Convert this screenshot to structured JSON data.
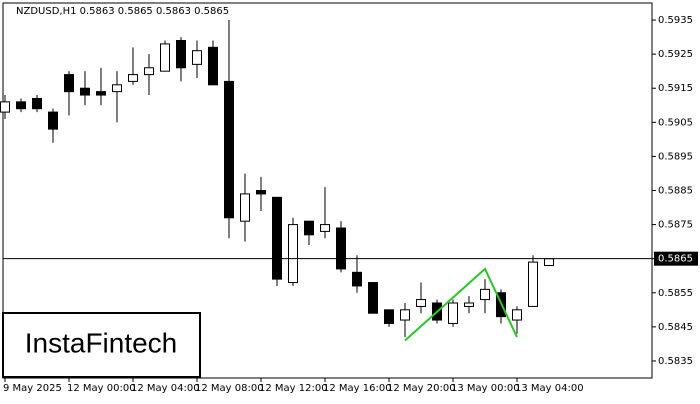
{
  "chart_data": {
    "type": "candlestick",
    "title": "NZDUSD,H1  0.5863 0.5865 0.5863 0.5865",
    "categories": [
      "9 May 2025",
      null,
      null,
      null,
      "12 May 00:00",
      null,
      null,
      null,
      "12 May 04:00",
      null,
      null,
      null,
      "12 May 08:00",
      null,
      null,
      null,
      "12 May 12:00",
      null,
      null,
      null,
      "12 May 16:00",
      null,
      null,
      null,
      "12 May 20:00",
      null,
      null,
      null,
      "13 May 00:00",
      null,
      null,
      null,
      "13 May 04:00",
      null,
      null
    ],
    "open": [
      0.5908,
      0.5911,
      0.5912,
      0.5908,
      0.5919,
      0.5915,
      0.5914,
      0.5914,
      0.5917,
      0.5919,
      0.592,
      0.5929,
      0.5922,
      0.5927,
      0.5917,
      0.5876,
      0.5885,
      0.5883,
      0.5858,
      0.5876,
      0.5873,
      0.5874,
      0.5861,
      0.5858,
      0.585,
      0.5847,
      0.5851,
      0.5852,
      0.5846,
      0.5851,
      0.5853,
      0.5855,
      0.5847,
      0.5851,
      0.5863
    ],
    "high": [
      0.5913,
      0.5912,
      0.5913,
      0.5909,
      0.592,
      0.592,
      0.5921,
      0.592,
      0.5927,
      0.5925,
      0.5929,
      0.593,
      0.5929,
      0.5929,
      0.5935,
      0.589,
      0.5889,
      0.5883,
      0.5877,
      0.5876,
      0.5886,
      0.5876,
      0.5866,
      0.5858,
      0.585,
      0.5852,
      0.5858,
      0.5853,
      0.5853,
      0.5854,
      0.5859,
      0.5856,
      0.5851,
      0.5866,
      0.5865
    ],
    "low": [
      0.5906,
      0.5908,
      0.5908,
      0.5899,
      0.5907,
      0.591,
      0.591,
      0.5905,
      0.5916,
      0.5913,
      0.592,
      0.5917,
      0.5918,
      0.5916,
      0.5871,
      0.587,
      0.5879,
      0.5857,
      0.5857,
      0.5869,
      0.5871,
      0.5861,
      0.5855,
      0.5849,
      0.5845,
      0.5842,
      0.5849,
      0.5846,
      0.5845,
      0.5849,
      0.5849,
      0.5846,
      0.5843,
      0.5851,
      0.5863
    ],
    "close": [
      0.5911,
      0.5909,
      0.5909,
      0.5903,
      0.5914,
      0.5913,
      0.5913,
      0.5916,
      0.5919,
      0.5921,
      0.5928,
      0.5921,
      0.5926,
      0.5916,
      0.5877,
      0.5884,
      0.5884,
      0.5859,
      0.5875,
      0.5872,
      0.5875,
      0.5862,
      0.5857,
      0.5849,
      0.5846,
      0.585,
      0.5853,
      0.5847,
      0.5852,
      0.5852,
      0.5856,
      0.5848,
      0.585,
      0.5864,
      0.5865
    ],
    "ylim": [
      0.583,
      0.594
    ],
    "yticks": [
      0.5835,
      0.5845,
      0.5855,
      0.5865,
      0.5875,
      0.5885,
      0.5895,
      0.5905,
      0.5915,
      0.5925,
      0.5935
    ],
    "current_price": 0.5865,
    "pattern": {
      "color": "#22cc22",
      "x": [
        25,
        30,
        32
      ],
      "values": [
        0.5841,
        0.5862,
        0.5842
      ]
    }
  },
  "logo": "InstaFintech"
}
